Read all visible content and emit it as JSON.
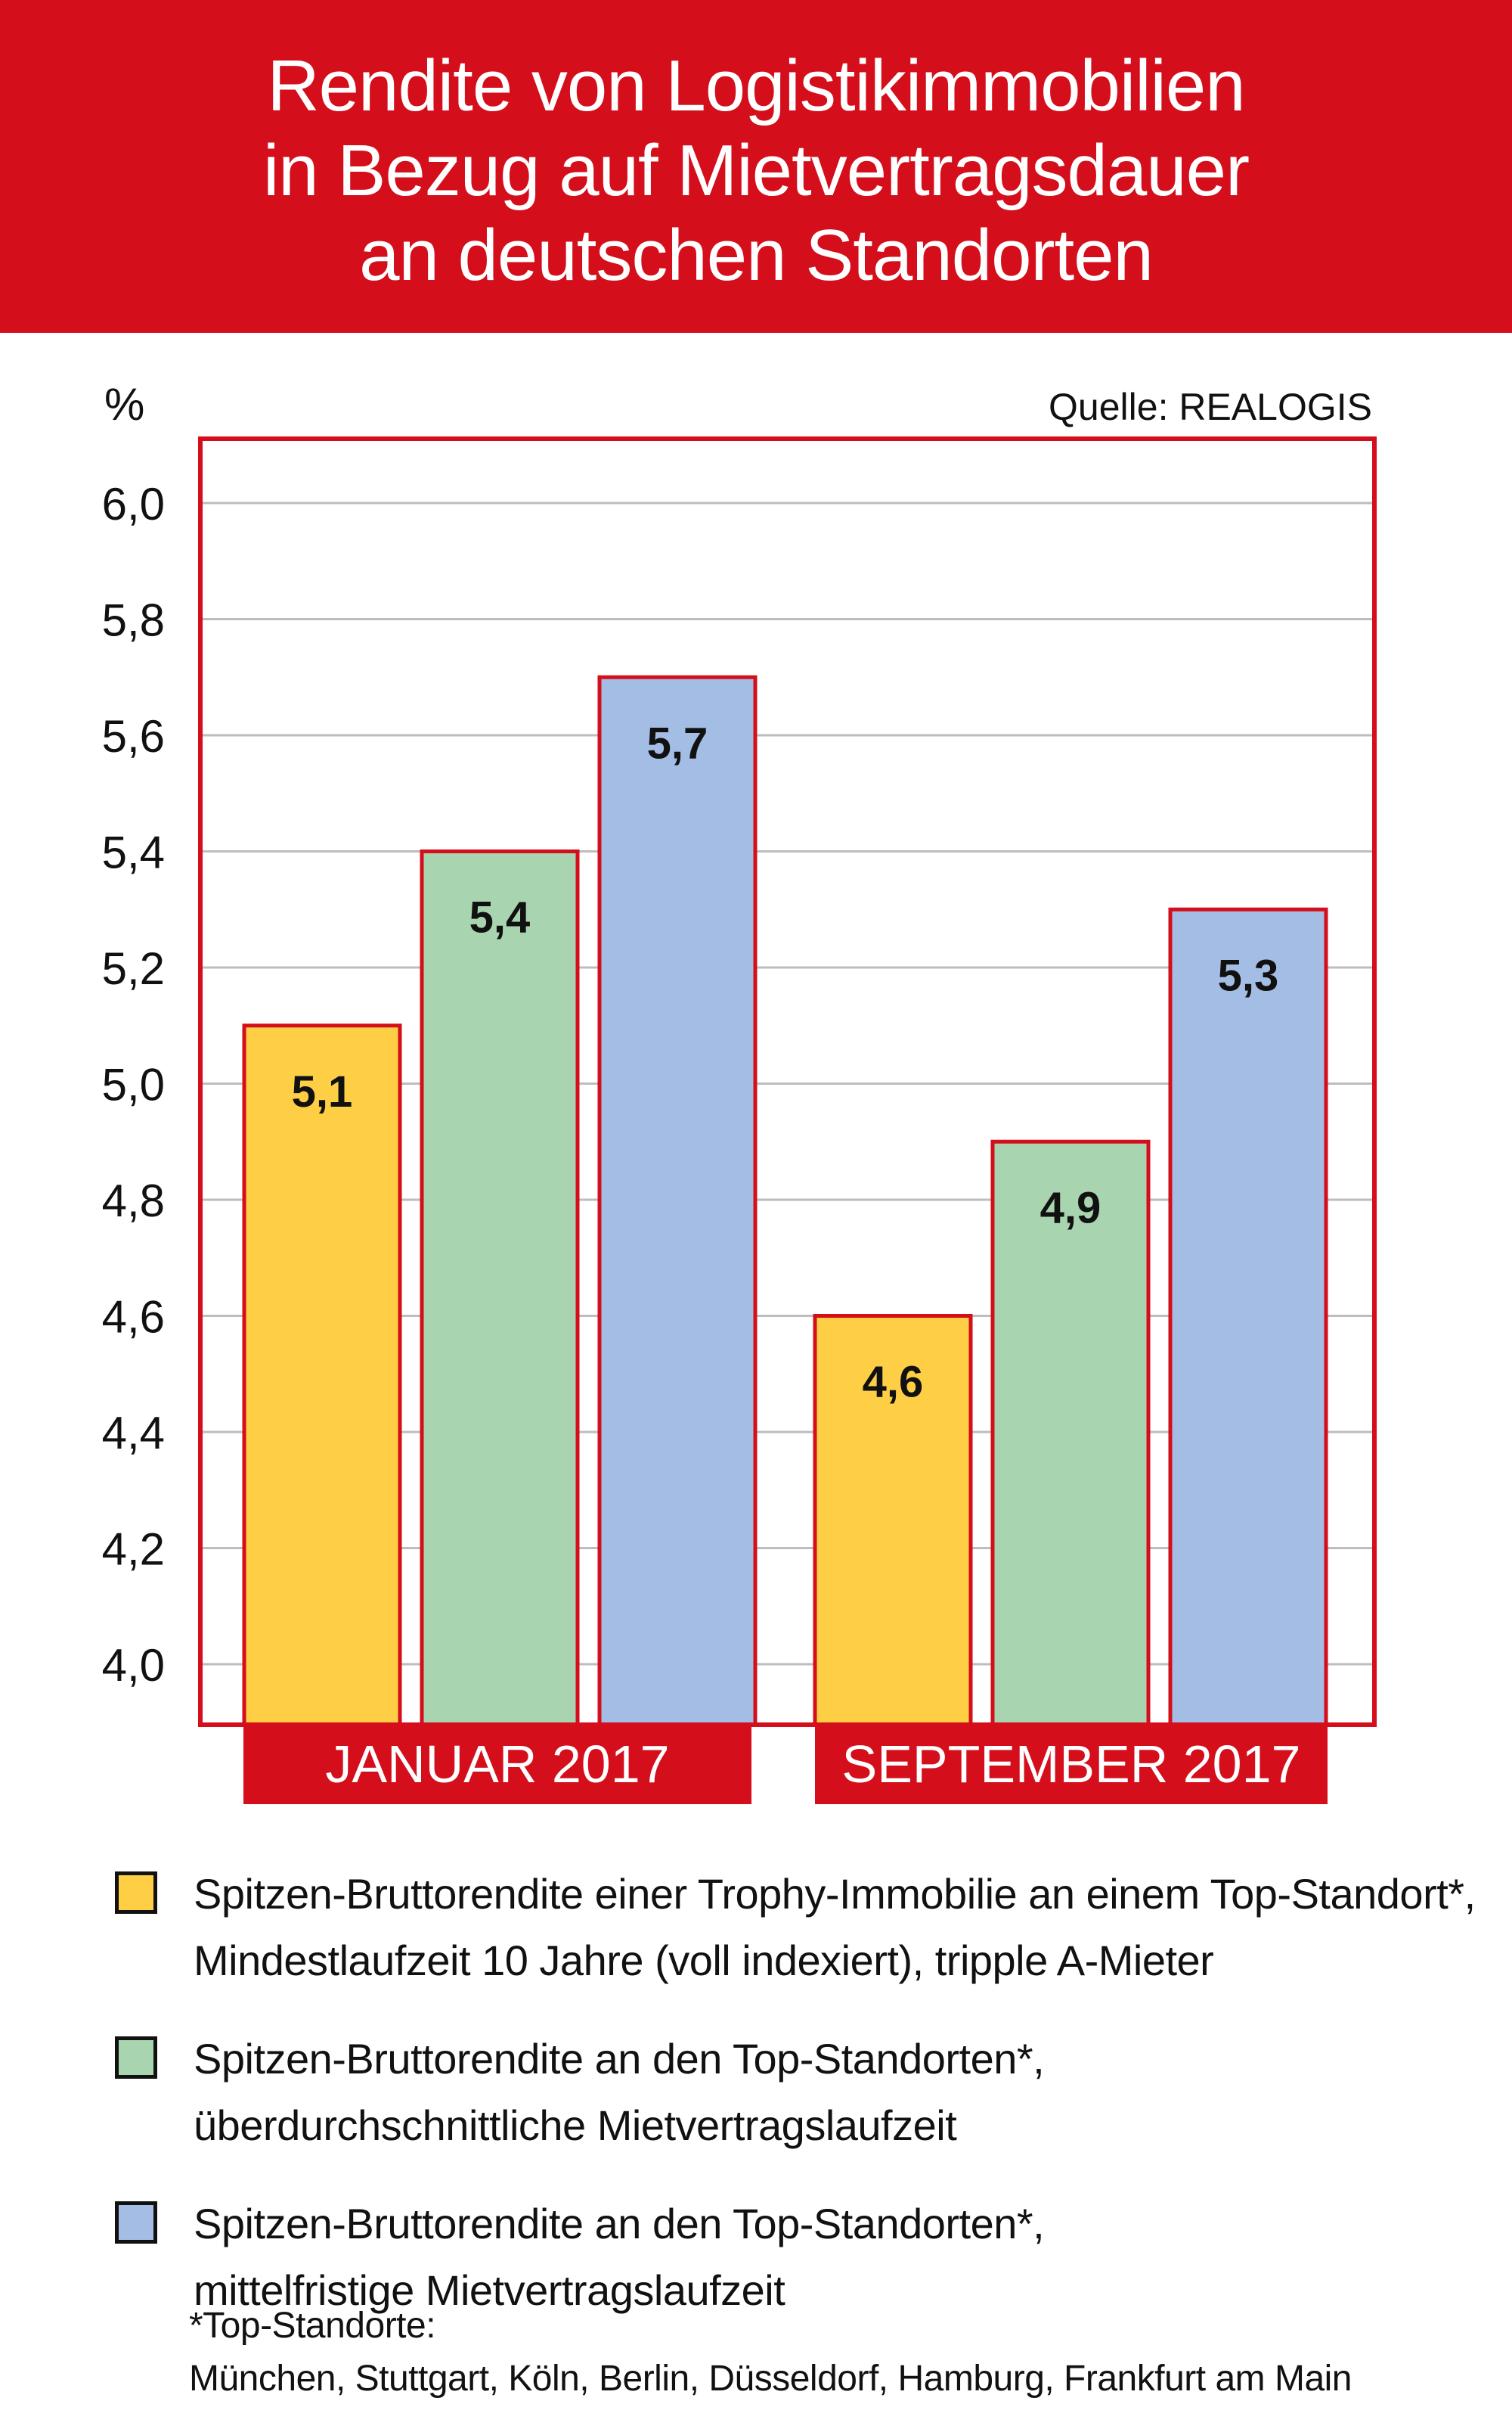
{
  "header": {
    "title_lines": [
      "Rendite von Logistikimmobilien",
      "in Bezug auf Mietvertragsdauer",
      "an deutschen Standorten"
    ]
  },
  "colors": {
    "header_bg": "#d40e1a",
    "frame": "#d40e1a",
    "series_yellow": "#fece45",
    "series_green": "#a8d5b0",
    "series_blue": "#a4bde4",
    "gridline": "#bdbdbd"
  },
  "chart_data": {
    "type": "bar",
    "unit_label": "%",
    "source": "Quelle: REALOGIS",
    "categories": [
      "JANUAR 2017",
      "SEPTEMBER 2017"
    ],
    "series": [
      {
        "name": "Spitzen-Bruttorendite einer Trophy-Immobilie an einem Top-Standort*, Mindestlaufzeit 10 Jahre (voll indexiert), tripple A-Mieter",
        "color": "#fece45",
        "values": [
          5.1,
          4.6
        ],
        "labels": [
          "5,1",
          "4,6"
        ]
      },
      {
        "name": "Spitzen-Bruttorendite an den Top-Standorten*, überdurchschnittliche Mietvertragslaufzeit",
        "color": "#a8d5b0",
        "values": [
          5.4,
          4.9
        ],
        "labels": [
          "5,4",
          "4,9"
        ]
      },
      {
        "name": "Spitzen-Bruttorendite an den Top-Standorten*, mittelfristige Mietvertragslaufzeit",
        "color": "#a4bde4",
        "values": [
          5.7,
          5.3
        ],
        "labels": [
          "5,7",
          "5,3"
        ]
      }
    ],
    "yticks": [
      4.0,
      4.2,
      4.4,
      4.6,
      4.8,
      5.0,
      5.2,
      5.4,
      5.6,
      5.8,
      6.0
    ],
    "ytick_labels": [
      "4,0",
      "4,2",
      "4,4",
      "4,6",
      "4,8",
      "5,0",
      "5,2",
      "5,4",
      "5,6",
      "5,8",
      "6,0"
    ],
    "ylim": [
      3.9,
      6.1
    ],
    "grid": true
  },
  "legend": {
    "items": [
      {
        "line1": "Spitzen-Bruttorendite einer Trophy-Immobilie an einem Top-Standort*,",
        "line2": "Mindestlaufzeit 10 Jahre (voll indexiert), tripple A-Mieter",
        "color": "#fece45"
      },
      {
        "line1": "Spitzen-Bruttorendite an den Top-Standorten*,",
        "line2": "überdurchschnittliche Mietvertragslaufzeit",
        "color": "#a8d5b0"
      },
      {
        "line1": "Spitzen-Bruttorendite an den Top-Standorten*,",
        "line2": "mittelfristige Mietvertragslaufzeit",
        "color": "#a4bde4"
      }
    ]
  },
  "footnote": {
    "line1": "*Top-Standorte:",
    "line2": "München, Stuttgart, Köln, Berlin, Düsseldorf, Hamburg, Frankfurt am Main"
  }
}
